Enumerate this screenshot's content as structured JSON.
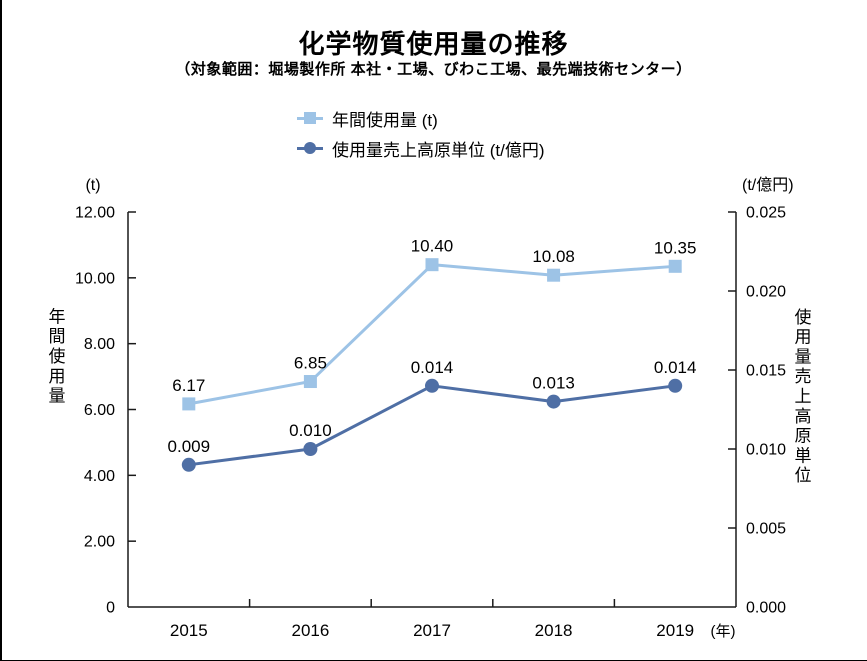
{
  "page": {
    "title": "化学物質使用量の推移",
    "subtitle": "（対象範囲：堀場製作所 本社・工場、びわこ工場、最先端技術センター）"
  },
  "legend": [
    {
      "label": "年間使用量 (t)",
      "color": "#9DC3E6",
      "marker": "square"
    },
    {
      "label": "使用量売上高原単位 (t/億円)",
      "color": "#4F6FA5",
      "marker": "circle"
    }
  ],
  "chart_data": {
    "type": "line",
    "categories": [
      "2015",
      "2016",
      "2017",
      "2018",
      "2019"
    ],
    "x_axis_suffix": "(年)",
    "left_axis": {
      "unit": "(t)",
      "title": "年間使用量",
      "ticks": [
        "12.00",
        "10.00",
        "8.00",
        "6.00",
        "4.00",
        "2.00",
        "0"
      ],
      "min": 0,
      "max": 12
    },
    "right_axis": {
      "unit": "(t/億円)",
      "title": "使用量売上高原単位",
      "ticks": [
        "0.025",
        "0.020",
        "0.015",
        "0.010",
        "0.005",
        "0.000"
      ],
      "min": 0,
      "max": 0.025
    },
    "grid": false,
    "legend_position": "top",
    "series": [
      {
        "name": "年間使用量 (t)",
        "axis": "left",
        "marker": "square",
        "color": "#9DC3E6",
        "values": [
          6.17,
          6.85,
          10.4,
          10.08,
          10.35
        ],
        "labels": [
          "6.17",
          "6.85",
          "10.40",
          "10.08",
          "10.35"
        ]
      },
      {
        "name": "使用量売上高原単位 (t/億円)",
        "axis": "right",
        "marker": "circle",
        "color": "#4F6FA5",
        "values": [
          0.009,
          0.01,
          0.014,
          0.013,
          0.014
        ],
        "labels": [
          "0.009",
          "0.010",
          "0.014",
          "0.013",
          "0.014"
        ]
      }
    ]
  }
}
